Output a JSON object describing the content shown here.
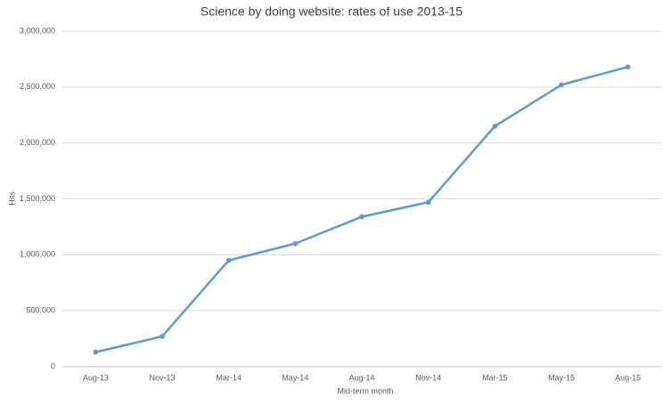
{
  "chart_data": {
    "type": "line",
    "title": "Science by doing website: rates of use 2013-15",
    "x_label": "Mid-term month",
    "y_label": "Hits",
    "categories": [
      "Aug-13",
      "Nov-13",
      "Mar-14",
      "May-14",
      "Aug-14",
      "Nov-14",
      "Mar-15",
      "May-15",
      "Aug-15"
    ],
    "values": [
      130000,
      270000,
      950000,
      1100000,
      1340000,
      1470000,
      2150000,
      2520000,
      2680000
    ],
    "color": "#5b9bd5",
    "ylim": [
      0,
      3000000
    ],
    "yticks": [
      0,
      {
        "value": 500000,
        "label": "500,000"
      },
      {
        "value": 1000000,
        "label": "1,000,000"
      },
      {
        "value": 1500000,
        "label": "1,500,000"
      },
      {
        "value": 2000000,
        "label": "2,000,000"
      },
      {
        "value": 2500000,
        "label": "2,500,000"
      },
      {
        "value": 3000000,
        "label": "3,000,000"
      }
    ],
    "grid": true
  }
}
